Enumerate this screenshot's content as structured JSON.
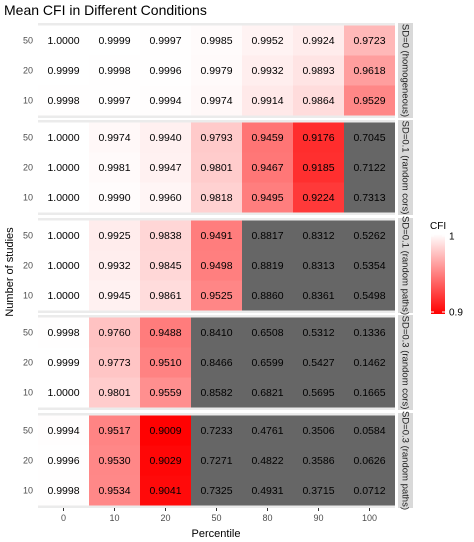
{
  "chart_data": {
    "type": "heatmap",
    "title": "Mean CFI in Different Conditions",
    "xlabel": "Percentile",
    "ylabel": "Number of studies",
    "x_categories": [
      "0",
      "10",
      "20",
      "50",
      "80",
      "90",
      "100"
    ],
    "y_categories": [
      "50",
      "20",
      "10"
    ],
    "color_scale": {
      "name": "CFI",
      "min": 0.9,
      "max": 1,
      "low_color": "#ff0000",
      "high_color": "#ffffff",
      "below_min_color": "#666666",
      "ticks": [
        "1",
        "0.9"
      ]
    },
    "panels": [
      {
        "label": "SD=0 (homogeneous)",
        "rows": [
          {
            "studies": "50",
            "values": [
              "1.0000",
              "0.9999",
              "0.9997",
              "0.9985",
              "0.9952",
              "0.9924",
              "0.9723"
            ]
          },
          {
            "studies": "20",
            "values": [
              "0.9999",
              "0.9998",
              "0.9996",
              "0.9979",
              "0.9932",
              "0.9893",
              "0.9618"
            ]
          },
          {
            "studies": "10",
            "values": [
              "0.9998",
              "0.9997",
              "0.9994",
              "0.9974",
              "0.9914",
              "0.9864",
              "0.9529"
            ]
          }
        ]
      },
      {
        "label": "SD=0.1 (random cors)",
        "rows": [
          {
            "studies": "50",
            "values": [
              "1.0000",
              "0.9974",
              "0.9940",
              "0.9793",
              "0.9459",
              "0.9176",
              "0.7045"
            ]
          },
          {
            "studies": "20",
            "values": [
              "1.0000",
              "0.9981",
              "0.9947",
              "0.9801",
              "0.9467",
              "0.9185",
              "0.7122"
            ]
          },
          {
            "studies": "10",
            "values": [
              "1.0000",
              "0.9990",
              "0.9960",
              "0.9818",
              "0.9495",
              "0.9224",
              "0.7313"
            ]
          }
        ]
      },
      {
        "label": "SD=0.1 (random paths)",
        "rows": [
          {
            "studies": "50",
            "values": [
              "1.0000",
              "0.9925",
              "0.9838",
              "0.9491",
              "0.8817",
              "0.8312",
              "0.5262"
            ]
          },
          {
            "studies": "20",
            "values": [
              "1.0000",
              "0.9932",
              "0.9845",
              "0.9498",
              "0.8819",
              "0.8313",
              "0.5354"
            ]
          },
          {
            "studies": "10",
            "values": [
              "1.0000",
              "0.9945",
              "0.9861",
              "0.9525",
              "0.8860",
              "0.8361",
              "0.5498"
            ]
          }
        ]
      },
      {
        "label": "SD=0.3 (random cors)",
        "rows": [
          {
            "studies": "50",
            "values": [
              "0.9998",
              "0.9760",
              "0.9488",
              "0.8410",
              "0.6508",
              "0.5312",
              "0.1336"
            ]
          },
          {
            "studies": "20",
            "values": [
              "0.9999",
              "0.9773",
              "0.9510",
              "0.8466",
              "0.6599",
              "0.5427",
              "0.1462"
            ]
          },
          {
            "studies": "10",
            "values": [
              "1.0000",
              "0.9801",
              "0.9559",
              "0.8582",
              "0.6821",
              "0.5695",
              "0.1665"
            ]
          }
        ]
      },
      {
        "label": "SD=0.3 (random paths)",
        "rows": [
          {
            "studies": "50",
            "values": [
              "0.9994",
              "0.9517",
              "0.9009",
              "0.7233",
              "0.4761",
              "0.3506",
              "0.0584"
            ]
          },
          {
            "studies": "20",
            "values": [
              "0.9996",
              "0.9530",
              "0.9029",
              "0.7271",
              "0.4822",
              "0.3586",
              "0.0626"
            ]
          },
          {
            "studies": "10",
            "values": [
              "0.9998",
              "0.9534",
              "0.9041",
              "0.7325",
              "0.4931",
              "0.3715",
              "0.0712"
            ]
          }
        ]
      }
    ]
  }
}
